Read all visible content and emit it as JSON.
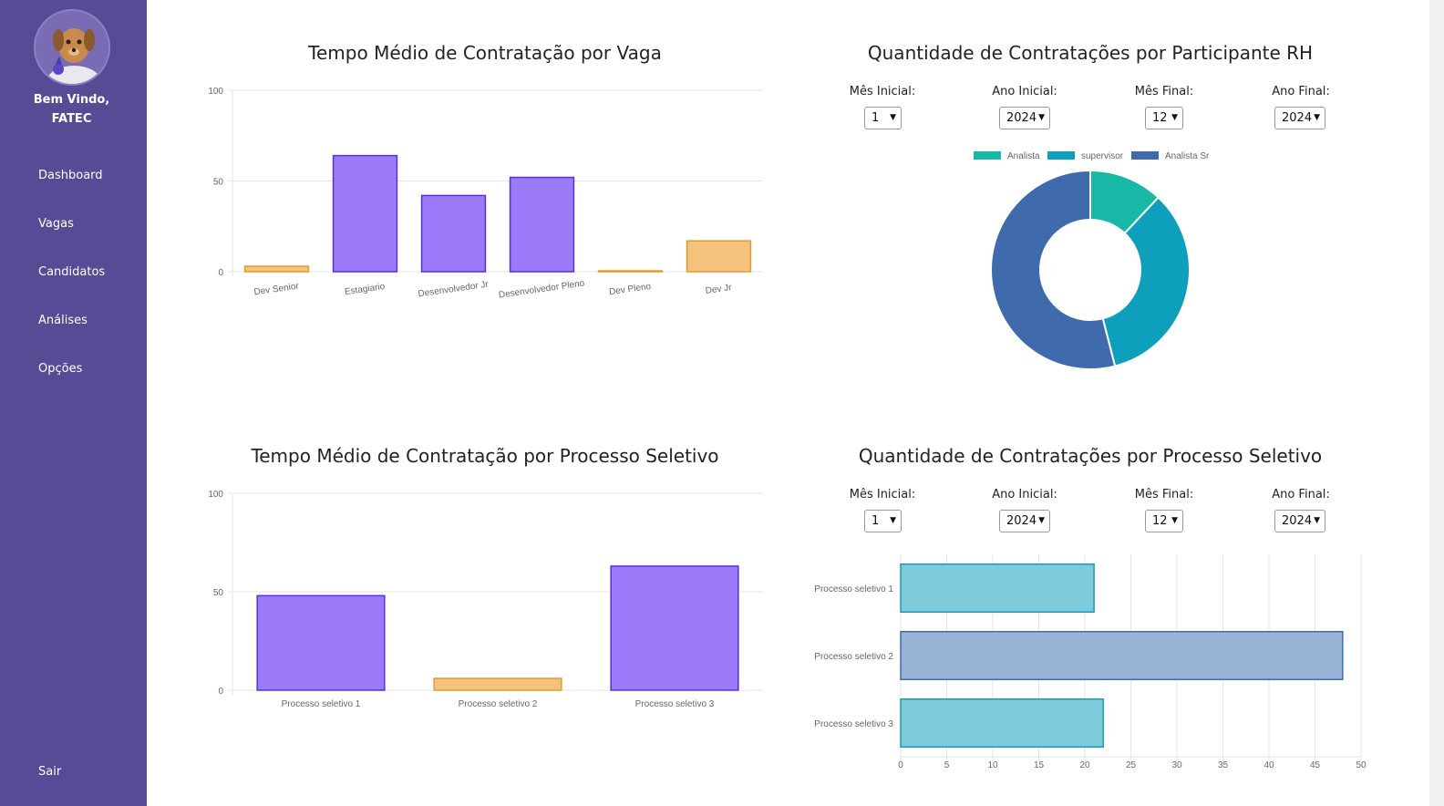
{
  "sidebar": {
    "welcome_line1": "Bem Vindo,",
    "welcome_line2": "FATEC",
    "items": [
      {
        "label": "Dashboard"
      },
      {
        "label": "Vagas"
      },
      {
        "label": "Candidatos"
      },
      {
        "label": "Análises"
      },
      {
        "label": "Opções"
      }
    ],
    "logout": "Sair"
  },
  "filters_labels": {
    "mes_inicial": "Mês Inicial:",
    "ano_inicial": "Ano Inicial:",
    "mes_final": "Mês Final:",
    "ano_final": "Ano Final:"
  },
  "filters_rh": {
    "mes_inicial": "1",
    "ano_inicial": "2024",
    "mes_final": "12",
    "ano_final": "2024"
  },
  "filters_ps": {
    "mes_inicial": "1",
    "ano_inicial": "2024",
    "mes_final": "12",
    "ano_final": "2024"
  },
  "chart_data": [
    {
      "type": "bar",
      "title": "Tempo Médio de Contratação por Vaga",
      "categories": [
        "Dev Senior",
        "Estagiario",
        "Desenvolvedor Jr",
        "Desenvolvedor Pleno",
        "Dev Pleno",
        "Dev Jr"
      ],
      "values": [
        3,
        64,
        42,
        52,
        0.5,
        17
      ],
      "colors": [
        "#f5c27e",
        "#9b7bf9",
        "#9b7bf9",
        "#9b7bf9",
        "#f5c27e",
        "#f5c27e"
      ],
      "ylim": [
        0,
        100
      ],
      "yticks": [
        0,
        50,
        100
      ]
    },
    {
      "type": "pie",
      "title": "Quantidade de Contratações por Participante RH",
      "labels": [
        "Analista",
        "supervisor",
        "Analista Sr"
      ],
      "values": [
        12,
        34,
        54
      ],
      "colors": [
        "#17b8a6",
        "#0e9fbd",
        "#3f6aab"
      ],
      "legend": "top"
    },
    {
      "type": "bar",
      "title": "Tempo Médio de Contratação por Processo Seletivo",
      "categories": [
        "Processo seletivo 1",
        "Processo seletivo 2",
        "Processo seletivo 3"
      ],
      "values": [
        48,
        6,
        63
      ],
      "colors": [
        "#9b7bf9",
        "#f5c27e",
        "#9b7bf9"
      ],
      "ylim": [
        0,
        100
      ],
      "yticks": [
        0,
        50,
        100
      ]
    },
    {
      "type": "bar",
      "orientation": "horizontal",
      "title": "Quantidade de Contratações por Processo Seletivo",
      "categories": [
        "Processo seletivo 1",
        "Processo seletivo 2",
        "Processo seletivo 3"
      ],
      "values": [
        21,
        48,
        22
      ],
      "colors": [
        "#7ecbdc",
        "#9ab4d8",
        "#7ecbdc"
      ],
      "xlim": [
        0,
        50
      ],
      "xticks": [
        0,
        5,
        10,
        15,
        20,
        25,
        30,
        35,
        40,
        45,
        50
      ]
    }
  ]
}
